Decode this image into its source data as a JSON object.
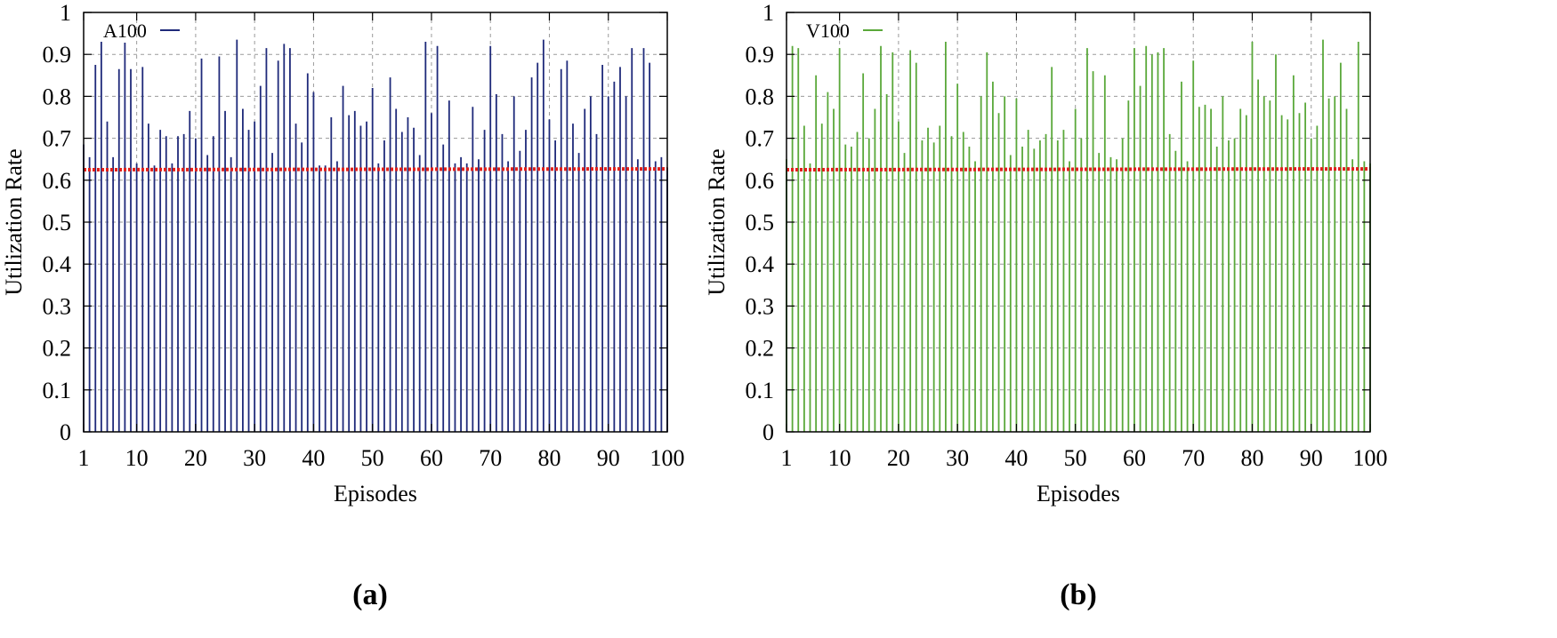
{
  "chart_data": [
    {
      "type": "bar",
      "subtype": "impulse",
      "caption": "(a)",
      "xlabel": "Episodes",
      "ylabel": "Utilization Rate",
      "xlim": [
        1,
        100
      ],
      "ylim": [
        0,
        1
      ],
      "xticks": [
        "1",
        "10",
        "20",
        "30",
        "40",
        "50",
        "60",
        "70",
        "80",
        "90",
        "100"
      ],
      "yticks": [
        "0",
        "0.1",
        "0.2",
        "0.3",
        "0.4",
        "0.5",
        "0.6",
        "0.7",
        "0.8",
        "0.9",
        "1"
      ],
      "grid": true,
      "legend_position": "top-left",
      "series": [
        {
          "name": "A100",
          "color": "#1f2a7a",
          "x": [
            1,
            2,
            3,
            4,
            5,
            6,
            7,
            8,
            9,
            10,
            11,
            12,
            13,
            14,
            15,
            16,
            17,
            18,
            19,
            20,
            21,
            22,
            23,
            24,
            25,
            26,
            27,
            28,
            29,
            30,
            31,
            32,
            33,
            34,
            35,
            36,
            37,
            38,
            39,
            40,
            41,
            42,
            43,
            44,
            45,
            46,
            47,
            48,
            49,
            50,
            51,
            52,
            53,
            54,
            55,
            56,
            57,
            58,
            59,
            60,
            61,
            62,
            63,
            64,
            65,
            66,
            67,
            68,
            69,
            70,
            71,
            72,
            73,
            74,
            75,
            76,
            77,
            78,
            79,
            80,
            81,
            82,
            83,
            84,
            85,
            86,
            87,
            88,
            89,
            90,
            91,
            92,
            93,
            94,
            95,
            96,
            97,
            98,
            99,
            100
          ],
          "values": [
            0.685,
            0.655,
            0.875,
            0.93,
            0.74,
            0.655,
            0.865,
            0.928,
            0.865,
            0.64,
            0.87,
            0.735,
            0.635,
            0.72,
            0.705,
            0.64,
            0.705,
            0.71,
            0.765,
            0.7,
            0.89,
            0.66,
            0.705,
            0.895,
            0.765,
            0.655,
            0.935,
            0.77,
            0.72,
            0.74,
            0.825,
            0.915,
            0.665,
            0.885,
            0.925,
            0.915,
            0.735,
            0.69,
            0.855,
            0.81,
            0.635,
            0.635,
            0.75,
            0.645,
            0.825,
            0.755,
            0.765,
            0.73,
            0.74,
            0.82,
            0.64,
            0.695,
            0.845,
            0.77,
            0.715,
            0.75,
            0.725,
            0.66,
            0.93,
            0.76,
            0.92,
            0.685,
            0.79,
            0.64,
            0.655,
            0.64,
            0.775,
            0.65,
            0.72,
            0.92,
            0.805,
            0.71,
            0.645,
            0.8,
            0.67,
            0.72,
            0.845,
            0.88,
            0.935,
            0.745,
            0.695,
            0.865,
            0.885,
            0.735,
            0.665,
            0.77,
            0.8,
            0.71,
            0.875,
            0.8,
            0.835,
            0.87,
            0.8,
            0.915,
            0.65,
            0.915,
            0.88,
            0.645,
            0.655,
            0.63
          ],
          "mean_line": 0.625
        }
      ]
    },
    {
      "type": "bar",
      "subtype": "impulse",
      "caption": "(b)",
      "xlabel": "Episodes",
      "ylabel": "Utilization Rate",
      "xlim": [
        1,
        100
      ],
      "ylim": [
        0,
        1
      ],
      "xticks": [
        "1",
        "10",
        "20",
        "30",
        "40",
        "50",
        "60",
        "70",
        "80",
        "90",
        "100"
      ],
      "yticks": [
        "0",
        "0.1",
        "0.2",
        "0.3",
        "0.4",
        "0.5",
        "0.6",
        "0.7",
        "0.8",
        "0.9",
        "1"
      ],
      "grid": true,
      "legend_position": "top-left",
      "series": [
        {
          "name": "V100",
          "color": "#5aa83a",
          "x": [
            1,
            2,
            3,
            4,
            5,
            6,
            7,
            8,
            9,
            10,
            11,
            12,
            13,
            14,
            15,
            16,
            17,
            18,
            19,
            20,
            21,
            22,
            23,
            24,
            25,
            26,
            27,
            28,
            29,
            30,
            31,
            32,
            33,
            34,
            35,
            36,
            37,
            38,
            39,
            40,
            41,
            42,
            43,
            44,
            45,
            46,
            47,
            48,
            49,
            50,
            51,
            52,
            53,
            54,
            55,
            56,
            57,
            58,
            59,
            60,
            61,
            62,
            63,
            64,
            65,
            66,
            67,
            68,
            69,
            70,
            71,
            72,
            73,
            74,
            75,
            76,
            77,
            78,
            79,
            80,
            81,
            82,
            83,
            84,
            85,
            86,
            87,
            88,
            89,
            90,
            91,
            92,
            93,
            94,
            95,
            96,
            97,
            98,
            99,
            100
          ],
          "values": [
            0.65,
            0.92,
            0.915,
            0.73,
            0.64,
            0.85,
            0.735,
            0.81,
            0.77,
            0.915,
            0.685,
            0.68,
            0.715,
            0.855,
            0.7,
            0.77,
            0.92,
            0.805,
            0.905,
            0.74,
            0.665,
            0.91,
            0.88,
            0.695,
            0.725,
            0.69,
            0.73,
            0.93,
            0.705,
            0.83,
            0.715,
            0.68,
            0.645,
            0.8,
            0.905,
            0.835,
            0.76,
            0.8,
            0.66,
            0.795,
            0.68,
            0.72,
            0.675,
            0.695,
            0.71,
            0.87,
            0.695,
            0.72,
            0.645,
            0.77,
            0.7,
            0.915,
            0.86,
            0.665,
            0.85,
            0.655,
            0.65,
            0.7,
            0.79,
            0.915,
            0.825,
            0.92,
            0.9,
            0.905,
            0.915,
            0.71,
            0.67,
            0.835,
            0.645,
            0.885,
            0.775,
            0.78,
            0.77,
            0.68,
            0.8,
            0.695,
            0.7,
            0.77,
            0.755,
            0.93,
            0.84,
            0.8,
            0.79,
            0.9,
            0.755,
            0.745,
            0.85,
            0.76,
            0.785,
            0.7,
            0.73,
            0.935,
            0.795,
            0.8,
            0.88,
            0.77,
            0.65,
            0.93,
            0.645,
            0.64
          ],
          "mean_line": 0.625
        }
      ]
    }
  ]
}
